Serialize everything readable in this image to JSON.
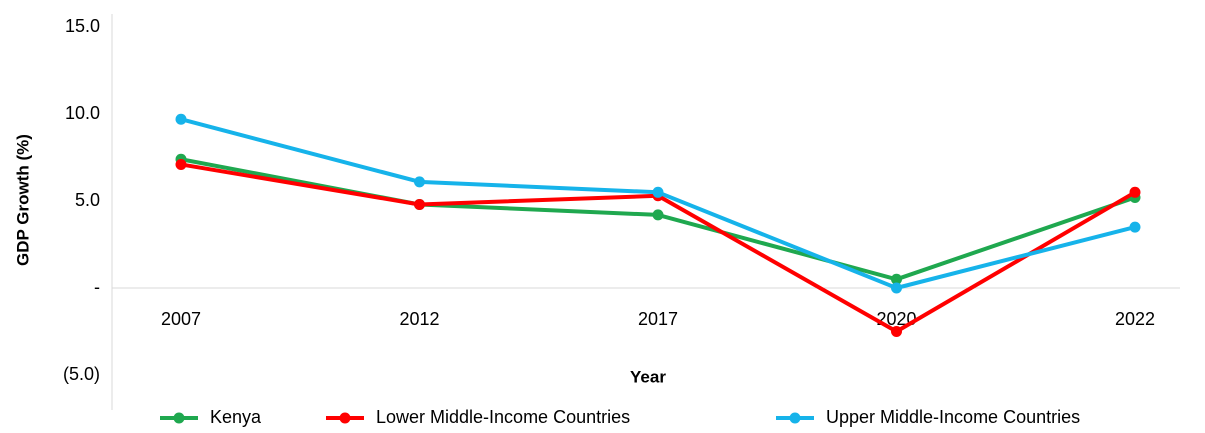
{
  "chart_data": {
    "type": "line",
    "y_label": "GDP Growth (%)",
    "x_label": "Year",
    "categories": [
      "2007",
      "2012",
      "2017",
      "2020",
      "2022"
    ],
    "series": [
      {
        "name": "Kenya",
        "color": "#1fa84f",
        "values": [
          7.4,
          4.8,
          4.2,
          0.5,
          5.2
        ]
      },
      {
        "name": "Lower Middle-Income Countries",
        "color": "#ff0000",
        "values": [
          7.1,
          4.8,
          5.3,
          -2.5,
          5.5
        ]
      },
      {
        "name": "Upper Middle-Income Countries",
        "color": "#16b3ea",
        "values": [
          9.7,
          6.1,
          5.5,
          0.0,
          3.5
        ]
      }
    ],
    "ylim": [
      -5,
      15
    ],
    "yticks": [
      {
        "value": 15,
        "label": "15.0"
      },
      {
        "value": 10,
        "label": "10.0"
      },
      {
        "value": 5,
        "label": "5.0"
      },
      {
        "value": 0,
        "label": "-"
      },
      {
        "value": -5,
        "label": "(5.0)"
      }
    ],
    "legend": "bottom"
  }
}
